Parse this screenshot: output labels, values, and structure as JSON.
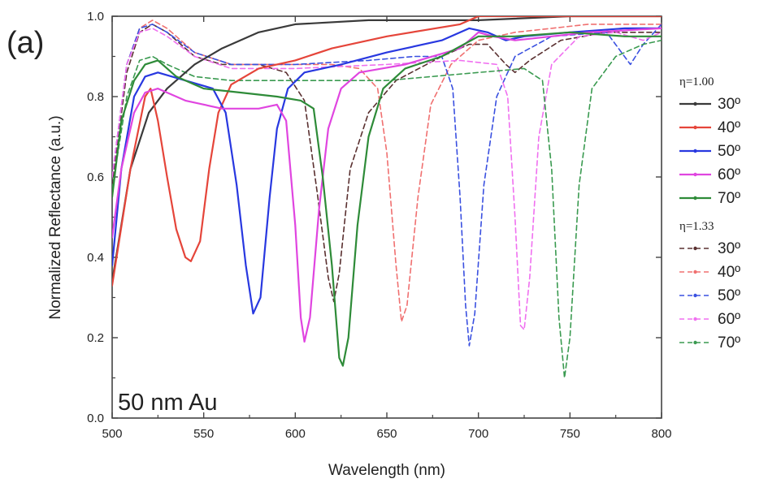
{
  "panel_label": "(a)",
  "annotation": "50 nm Au",
  "chart_data": {
    "type": "line",
    "xlabel": "Wavelength (nm)",
    "ylabel": "Normalized Reflectance (a.u.)",
    "xlim": [
      500,
      800
    ],
    "ylim": [
      0.0,
      1.0
    ],
    "xticks": [
      500,
      550,
      600,
      650,
      700,
      750,
      800
    ],
    "yticks": [
      0.0,
      0.2,
      0.4,
      0.6,
      0.8,
      1.0
    ],
    "xtick_labels": [
      "500",
      "550",
      "600",
      "650",
      "700",
      "750",
      "800"
    ],
    "ytick_labels": [
      "0.0",
      "0.2",
      "0.4",
      "0.6",
      "0.8",
      "1.0"
    ],
    "grid": false,
    "legend_position": "right",
    "legend_groups": [
      {
        "title": "η=1.00",
        "line_style": "solid",
        "series": [
          0,
          1,
          2,
          3,
          4
        ]
      },
      {
        "title": "η=1.33",
        "line_style": "dashed",
        "series": [
          5,
          6,
          7,
          8,
          9
        ]
      }
    ],
    "series": [
      {
        "name": "30º",
        "group": "η=1.00",
        "color": "#3a3a3a",
        "dash": false,
        "points": [
          [
            500,
            0.34
          ],
          [
            510,
            0.62
          ],
          [
            520,
            0.76
          ],
          [
            530,
            0.82
          ],
          [
            545,
            0.88
          ],
          [
            560,
            0.92
          ],
          [
            580,
            0.96
          ],
          [
            600,
            0.98
          ],
          [
            640,
            0.99
          ],
          [
            700,
            0.99
          ],
          [
            750,
            1.0
          ],
          [
            800,
            1.0
          ]
        ]
      },
      {
        "name": "40º",
        "group": "η=1.00",
        "color": "#e5453a",
        "dash": false,
        "points": [
          [
            500,
            0.33
          ],
          [
            510,
            0.62
          ],
          [
            518,
            0.8
          ],
          [
            521,
            0.82
          ],
          [
            525,
            0.74
          ],
          [
            530,
            0.6
          ],
          [
            535,
            0.47
          ],
          [
            540,
            0.4
          ],
          [
            543,
            0.39
          ],
          [
            548,
            0.44
          ],
          [
            553,
            0.62
          ],
          [
            558,
            0.76
          ],
          [
            565,
            0.83
          ],
          [
            580,
            0.87
          ],
          [
            600,
            0.89
          ],
          [
            620,
            0.92
          ],
          [
            650,
            0.95
          ],
          [
            690,
            0.98
          ],
          [
            700,
            1.0
          ],
          [
            750,
            1.0
          ],
          [
            800,
            1.0
          ]
        ]
      },
      {
        "name": "50º",
        "group": "η=1.00",
        "color": "#2838e0",
        "dash": false,
        "points": [
          [
            500,
            0.38
          ],
          [
            505,
            0.62
          ],
          [
            512,
            0.8
          ],
          [
            518,
            0.85
          ],
          [
            525,
            0.86
          ],
          [
            540,
            0.84
          ],
          [
            555,
            0.82
          ],
          [
            562,
            0.76
          ],
          [
            568,
            0.58
          ],
          [
            573,
            0.38
          ],
          [
            577,
            0.26
          ],
          [
            581,
            0.3
          ],
          [
            586,
            0.55
          ],
          [
            590,
            0.72
          ],
          [
            596,
            0.82
          ],
          [
            605,
            0.86
          ],
          [
            625,
            0.88
          ],
          [
            650,
            0.91
          ],
          [
            680,
            0.94
          ],
          [
            695,
            0.97
          ],
          [
            705,
            0.96
          ],
          [
            715,
            0.94
          ],
          [
            725,
            0.95
          ],
          [
            750,
            0.96
          ],
          [
            780,
            0.97
          ],
          [
            800,
            0.97
          ]
        ]
      },
      {
        "name": "60º",
        "group": "η=1.00",
        "color": "#e045e0",
        "dash": false,
        "points": [
          [
            500,
            0.45
          ],
          [
            505,
            0.62
          ],
          [
            512,
            0.76
          ],
          [
            518,
            0.81
          ],
          [
            525,
            0.82
          ],
          [
            540,
            0.79
          ],
          [
            560,
            0.77
          ],
          [
            580,
            0.77
          ],
          [
            590,
            0.78
          ],
          [
            595,
            0.74
          ],
          [
            600,
            0.48
          ],
          [
            603,
            0.25
          ],
          [
            605,
            0.19
          ],
          [
            608,
            0.25
          ],
          [
            613,
            0.52
          ],
          [
            618,
            0.72
          ],
          [
            625,
            0.82
          ],
          [
            635,
            0.86
          ],
          [
            660,
            0.88
          ],
          [
            690,
            0.92
          ],
          [
            700,
            0.96
          ],
          [
            708,
            0.95
          ],
          [
            720,
            0.94
          ],
          [
            740,
            0.95
          ],
          [
            760,
            0.96
          ],
          [
            800,
            0.97
          ]
        ]
      },
      {
        "name": "70º",
        "group": "η=1.00",
        "color": "#2e8b38",
        "dash": false,
        "points": [
          [
            500,
            0.55
          ],
          [
            505,
            0.74
          ],
          [
            512,
            0.84
          ],
          [
            518,
            0.88
          ],
          [
            525,
            0.89
          ],
          [
            535,
            0.85
          ],
          [
            550,
            0.82
          ],
          [
            570,
            0.81
          ],
          [
            590,
            0.8
          ],
          [
            603,
            0.79
          ],
          [
            610,
            0.77
          ],
          [
            615,
            0.6
          ],
          [
            620,
            0.38
          ],
          [
            624,
            0.15
          ],
          [
            626,
            0.13
          ],
          [
            629,
            0.2
          ],
          [
            634,
            0.48
          ],
          [
            640,
            0.7
          ],
          [
            648,
            0.82
          ],
          [
            660,
            0.87
          ],
          [
            680,
            0.9
          ],
          [
            700,
            0.95
          ],
          [
            720,
            0.95
          ],
          [
            750,
            0.96
          ],
          [
            780,
            0.95
          ],
          [
            800,
            0.95
          ]
        ]
      },
      {
        "name": "30º",
        "group": "η=1.33",
        "color": "#5a3030",
        "dash": true,
        "points": [
          [
            500,
            0.58
          ],
          [
            508,
            0.86
          ],
          [
            515,
            0.96
          ],
          [
            522,
            0.98
          ],
          [
            530,
            0.96
          ],
          [
            545,
            0.9
          ],
          [
            560,
            0.88
          ],
          [
            580,
            0.88
          ],
          [
            595,
            0.86
          ],
          [
            605,
            0.79
          ],
          [
            612,
            0.56
          ],
          [
            618,
            0.35
          ],
          [
            621,
            0.29
          ],
          [
            624,
            0.36
          ],
          [
            630,
            0.62
          ],
          [
            640,
            0.76
          ],
          [
            655,
            0.84
          ],
          [
            680,
            0.9
          ],
          [
            695,
            0.93
          ],
          [
            705,
            0.93
          ],
          [
            715,
            0.88
          ],
          [
            720,
            0.86
          ],
          [
            728,
            0.89
          ],
          [
            745,
            0.94
          ],
          [
            770,
            0.96
          ],
          [
            800,
            0.96
          ]
        ]
      },
      {
        "name": "40º",
        "group": "η=1.33",
        "color": "#f07070",
        "dash": true,
        "points": [
          [
            500,
            0.6
          ],
          [
            508,
            0.88
          ],
          [
            515,
            0.97
          ],
          [
            522,
            0.99
          ],
          [
            530,
            0.97
          ],
          [
            545,
            0.91
          ],
          [
            565,
            0.88
          ],
          [
            595,
            0.88
          ],
          [
            620,
            0.88
          ],
          [
            635,
            0.87
          ],
          [
            645,
            0.82
          ],
          [
            650,
            0.66
          ],
          [
            655,
            0.38
          ],
          [
            658,
            0.24
          ],
          [
            661,
            0.28
          ],
          [
            667,
            0.55
          ],
          [
            674,
            0.78
          ],
          [
            685,
            0.88
          ],
          [
            700,
            0.94
          ],
          [
            720,
            0.96
          ],
          [
            740,
            0.97
          ],
          [
            760,
            0.98
          ],
          [
            800,
            0.98
          ]
        ]
      },
      {
        "name": "50º",
        "group": "η=1.33",
        "color": "#3a50e0",
        "dash": true,
        "points": [
          [
            500,
            0.6
          ],
          [
            508,
            0.88
          ],
          [
            515,
            0.97
          ],
          [
            522,
            0.98
          ],
          [
            530,
            0.96
          ],
          [
            545,
            0.91
          ],
          [
            565,
            0.88
          ],
          [
            600,
            0.88
          ],
          [
            640,
            0.89
          ],
          [
            665,
            0.9
          ],
          [
            680,
            0.9
          ],
          [
            686,
            0.82
          ],
          [
            690,
            0.55
          ],
          [
            693,
            0.28
          ],
          [
            695,
            0.18
          ],
          [
            698,
            0.26
          ],
          [
            703,
            0.58
          ],
          [
            710,
            0.8
          ],
          [
            720,
            0.9
          ],
          [
            740,
            0.95
          ],
          [
            770,
            0.96
          ],
          [
            783,
            0.88
          ],
          [
            790,
            0.93
          ],
          [
            800,
            0.98
          ]
        ]
      },
      {
        "name": "60º",
        "group": "η=1.33",
        "color": "#f070f0",
        "dash": true,
        "points": [
          [
            500,
            0.6
          ],
          [
            508,
            0.88
          ],
          [
            515,
            0.96
          ],
          [
            522,
            0.97
          ],
          [
            530,
            0.95
          ],
          [
            545,
            0.9
          ],
          [
            565,
            0.87
          ],
          [
            600,
            0.87
          ],
          [
            650,
            0.88
          ],
          [
            690,
            0.89
          ],
          [
            710,
            0.88
          ],
          [
            716,
            0.8
          ],
          [
            720,
            0.5
          ],
          [
            723,
            0.23
          ],
          [
            725,
            0.22
          ],
          [
            728,
            0.35
          ],
          [
            733,
            0.7
          ],
          [
            740,
            0.88
          ],
          [
            755,
            0.95
          ],
          [
            775,
            0.96
          ],
          [
            790,
            0.94
          ],
          [
            800,
            0.96
          ]
        ]
      },
      {
        "name": "70º",
        "group": "η=1.33",
        "color": "#3a9a50",
        "dash": true,
        "points": [
          [
            500,
            0.57
          ],
          [
            508,
            0.8
          ],
          [
            515,
            0.89
          ],
          [
            522,
            0.9
          ],
          [
            530,
            0.88
          ],
          [
            545,
            0.85
          ],
          [
            565,
            0.84
          ],
          [
            600,
            0.84
          ],
          [
            650,
            0.84
          ],
          [
            700,
            0.86
          ],
          [
            725,
            0.87
          ],
          [
            735,
            0.84
          ],
          [
            740,
            0.62
          ],
          [
            744,
            0.25
          ],
          [
            747,
            0.1
          ],
          [
            750,
            0.2
          ],
          [
            755,
            0.58
          ],
          [
            762,
            0.82
          ],
          [
            775,
            0.9
          ],
          [
            790,
            0.93
          ],
          [
            800,
            0.94
          ]
        ]
      }
    ]
  }
}
